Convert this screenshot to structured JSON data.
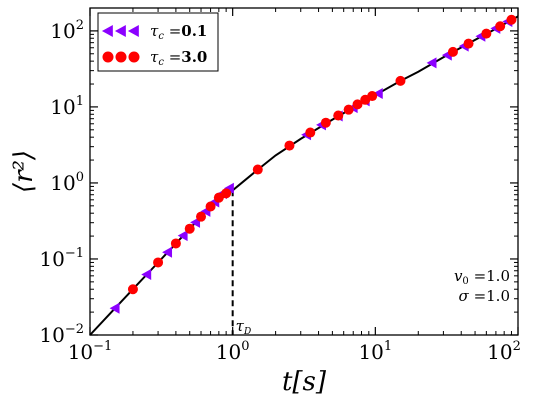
{
  "chart_data": {
    "type": "scatter",
    "xscale": "log",
    "yscale": "log",
    "xlim": [
      0.1,
      100
    ],
    "ylim": [
      0.01,
      200
    ],
    "xlabel": "t[s]",
    "ylabel": "⟨r²⟩",
    "x_ticks": [
      {
        "value": 0.1,
        "label_base": "10",
        "label_exp": "−1"
      },
      {
        "value": 1,
        "label_base": "10",
        "label_exp": "0"
      },
      {
        "value": 10,
        "label_base": "10",
        "label_exp": "1"
      },
      {
        "value": 100,
        "label_base": "10",
        "label_exp": "2"
      }
    ],
    "y_ticks": [
      {
        "value": 0.01,
        "label_base": "10",
        "label_exp": "−2"
      },
      {
        "value": 0.1,
        "label_base": "10",
        "label_exp": "−1"
      },
      {
        "value": 1,
        "label_base": "10",
        "label_exp": "0"
      },
      {
        "value": 10,
        "label_base": "10",
        "label_exp": "1"
      },
      {
        "value": 100,
        "label_base": "10",
        "label_exp": "2"
      }
    ],
    "fit_line": {
      "color": "#000000",
      "x": [
        0.1,
        0.15,
        0.2,
        0.3,
        0.5,
        0.7,
        1.0,
        1.5,
        2,
        3,
        5,
        7,
        10,
        15,
        20,
        30,
        50,
        70,
        100
      ],
      "y": [
        0.01,
        0.0225,
        0.04,
        0.09,
        0.25,
        0.49,
        0.8,
        1.5,
        2.3,
        3.8,
        6.8,
        9.8,
        14.3,
        22,
        29,
        45,
        76,
        107,
        155
      ]
    },
    "series": [
      {
        "name": "τ_c = 0.1",
        "legend_sub": "c",
        "legend_value": "0.1",
        "marker": "triangle-left",
        "color": "#8b00ff",
        "x": [
          0.15,
          0.25,
          0.35,
          0.45,
          0.55,
          0.65,
          0.75,
          0.85,
          0.95,
          3.3,
          4.2,
          5.5,
          7.0,
          8.5,
          10.5,
          25.0,
          32.0,
          42.0,
          55.0,
          70.0,
          85.0
        ],
        "y": [
          0.0225,
          0.0625,
          0.1225,
          0.2025,
          0.3025,
          0.4225,
          0.5625,
          0.7225,
          0.85,
          4.3,
          5.8,
          7.6,
          9.8,
          12.0,
          15.0,
          38.0,
          48.0,
          63.0,
          85.0,
          108.0,
          133.0
        ]
      },
      {
        "name": "τ_c = 3.0",
        "legend_sub": "c",
        "legend_value": "3.0",
        "marker": "circle",
        "color": "#ff0000",
        "x": [
          0.2,
          0.3,
          0.4,
          0.5,
          0.6,
          0.7,
          0.8,
          0.9,
          1.5,
          2.5,
          3.5,
          4.5,
          5.5,
          6.5,
          7.5,
          8.5,
          9.5,
          15.0,
          35.0,
          45.0,
          60.0,
          75.0,
          90.0
        ],
        "y": [
          0.04,
          0.09,
          0.16,
          0.25,
          0.36,
          0.49,
          0.64,
          0.73,
          1.5,
          3.1,
          4.6,
          6.2,
          7.7,
          9.2,
          10.8,
          12.4,
          13.9,
          22.0,
          53.0,
          68.0,
          92.0,
          115.0,
          140.0
        ]
      }
    ],
    "legend_position": "top-left",
    "tau_marker": {
      "x": 1.0,
      "y": 0.8,
      "label": "τ",
      "label_sub": "D"
    },
    "annotation": [
      {
        "symbol": "v",
        "sub": "0",
        "text": " =1.0"
      },
      {
        "symbol": "σ",
        "sub": "",
        "text": " =1.0"
      }
    ],
    "grid": false
  }
}
